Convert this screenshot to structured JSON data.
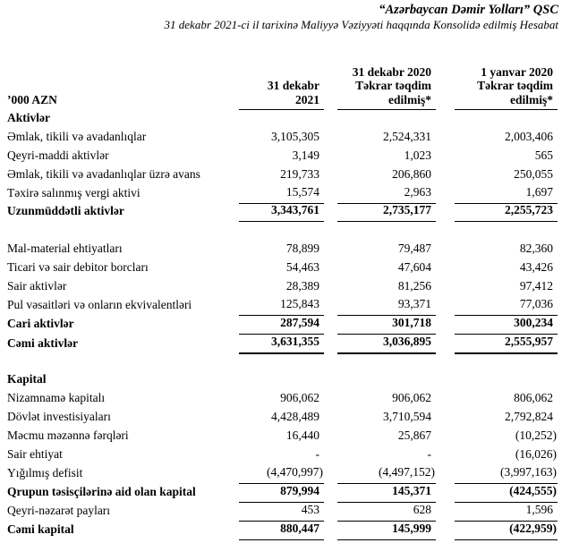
{
  "header": {
    "company": "“Azərbaycan Dəmir Yolları” QSC",
    "subtitle": "31 dekabr 2021-ci il tarixinə Maliyyə Vəziyyəti haqqında Konsolidə edilmiş Hesabat"
  },
  "table": {
    "unit_label": "’000 AZN",
    "columns": [
      {
        "lines": [
          "31 dekabr",
          "2021"
        ]
      },
      {
        "lines": [
          "31 dekabr 2020",
          "Təkrar təqdim",
          "edilmiş*"
        ]
      },
      {
        "lines": [
          "1 yanvar 2020",
          "Təkrar təqdim",
          "edilmiş*"
        ]
      }
    ],
    "rows": [
      {
        "kind": "section",
        "label": "Aktivlər"
      },
      {
        "kind": "item",
        "label": "Əmlak, tikili və avadanlıqlar",
        "values": [
          "3,105,305",
          "2,524,331",
          "2,003,406"
        ]
      },
      {
        "kind": "item",
        "label": "Qeyri-maddi aktivlər",
        "values": [
          "3,149",
          "1,023",
          "565"
        ]
      },
      {
        "kind": "item",
        "label": "Əmlak, tikili və avadanlıqlar üzrə avans",
        "values": [
          "219,733",
          "206,860",
          "250,055"
        ]
      },
      {
        "kind": "item",
        "rule": "bottom",
        "label": "Təxirə salınmış vergi aktivi",
        "values": [
          "15,574",
          "2,963",
          "1,697"
        ]
      },
      {
        "kind": "total",
        "rule": "bottom",
        "label": "Uzunmüddətli aktivlər",
        "values": [
          "3,343,761",
          "2,735,177",
          "2,255,723"
        ]
      },
      {
        "kind": "spacer"
      },
      {
        "kind": "item",
        "label": "Mal-material ehtiyatları",
        "values": [
          "78,899",
          "79,487",
          "82,360"
        ]
      },
      {
        "kind": "item",
        "label": "Ticari və sair debitor borcları",
        "values": [
          "54,463",
          "47,604",
          "43,426"
        ]
      },
      {
        "kind": "item",
        "label": "Sair aktivlər",
        "values": [
          "28,389",
          "81,256",
          "97,412"
        ]
      },
      {
        "kind": "item",
        "rule": "bottom",
        "label": "Pul vəsaitləri və onların ekvivalentləri",
        "values": [
          "125,843",
          "93,371",
          "77,036"
        ]
      },
      {
        "kind": "total",
        "rule": "bottom",
        "label": "Cari aktivlər",
        "values": [
          "287,594",
          "301,718",
          "300,234"
        ]
      },
      {
        "kind": "total",
        "rule": "bottom-thick",
        "label": "Cəmi aktivlər",
        "values": [
          "3,631,355",
          "3,036,895",
          "2,555,957"
        ]
      },
      {
        "kind": "spacer"
      },
      {
        "kind": "section",
        "label": "Kapital"
      },
      {
        "kind": "item",
        "label": "Nizamnamə kapitalı",
        "values": [
          "906,062",
          "906,062",
          "806,062"
        ]
      },
      {
        "kind": "item",
        "label": "Dövlət investisiyaları",
        "values": [
          "4,428,489",
          "3,710,594",
          "2,792,824"
        ]
      },
      {
        "kind": "item",
        "label": "Məcmu məzənnə fərqləri",
        "values": [
          "16,440",
          "25,867",
          "(10,252)"
        ]
      },
      {
        "kind": "item",
        "label": "Sair ehtiyat",
        "values": [
          "-",
          "-",
          "(16,026)"
        ]
      },
      {
        "kind": "item",
        "rule": "bottom",
        "label": "Yığılmış defisit",
        "values": [
          "(4,470,997)",
          "(4,497,152)",
          "(3,997,163)"
        ]
      },
      {
        "kind": "total",
        "rule": "bottom",
        "label": "Qrupun təsisçilərinə aid olan kapital",
        "values": [
          "879,994",
          "145,371",
          "(424,555)"
        ]
      },
      {
        "kind": "item",
        "rule": "bottom",
        "label": "Qeyri-nəzarət payları",
        "values": [
          "453",
          "628",
          "1,596"
        ]
      },
      {
        "kind": "total",
        "rule": "bottom-medium",
        "label": "Cəmi kapital",
        "values": [
          "880,447",
          "145,999",
          "(422,959)"
        ]
      }
    ]
  }
}
